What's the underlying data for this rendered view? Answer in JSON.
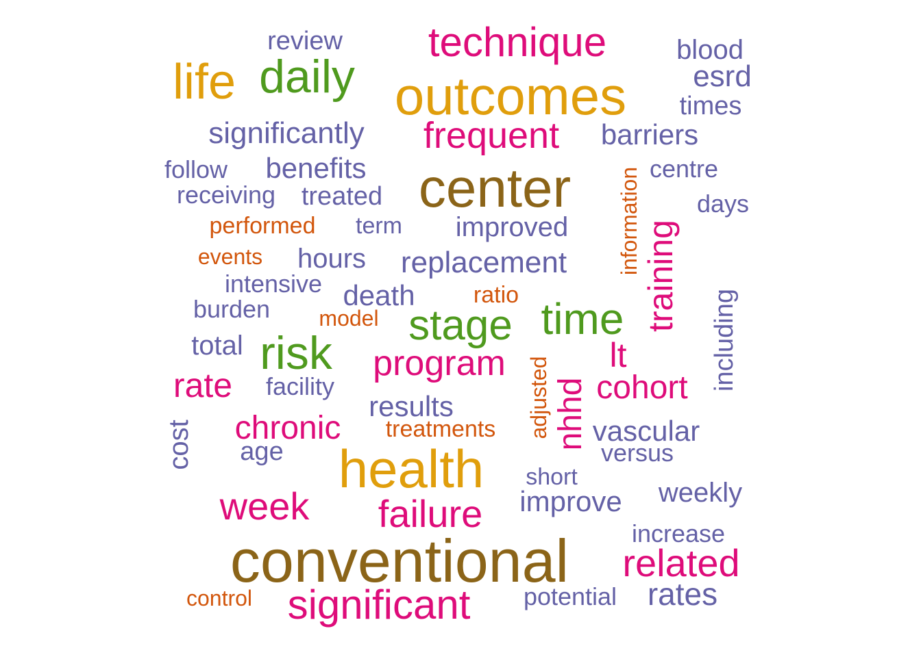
{
  "colors": {
    "brown": "#8B6418",
    "gold": "#E09E0C",
    "magenta": "#DE0C7A",
    "green": "#4F9A1E",
    "purple": "#6461A6",
    "orange": "#D2560C"
  },
  "words": [
    {
      "text": "conventional",
      "color": "brown"
    },
    {
      "text": "center",
      "color": "brown"
    },
    {
      "text": "outcomes",
      "color": "gold"
    },
    {
      "text": "health",
      "color": "gold"
    },
    {
      "text": "life",
      "color": "gold"
    },
    {
      "text": "daily",
      "color": "green"
    },
    {
      "text": "risk",
      "color": "green"
    },
    {
      "text": "stage",
      "color": "green"
    },
    {
      "text": "time",
      "color": "green"
    },
    {
      "text": "technique",
      "color": "magenta"
    },
    {
      "text": "frequent",
      "color": "magenta"
    },
    {
      "text": "training",
      "color": "magenta"
    },
    {
      "text": "program",
      "color": "magenta"
    },
    {
      "text": "lt",
      "color": "magenta"
    },
    {
      "text": "cohort",
      "color": "magenta"
    },
    {
      "text": "nhhd",
      "color": "magenta"
    },
    {
      "text": "rate",
      "color": "magenta"
    },
    {
      "text": "chronic",
      "color": "magenta"
    },
    {
      "text": "week",
      "color": "magenta"
    },
    {
      "text": "failure",
      "color": "magenta"
    },
    {
      "text": "related",
      "color": "magenta"
    },
    {
      "text": "significant",
      "color": "magenta"
    },
    {
      "text": "review",
      "color": "purple"
    },
    {
      "text": "blood",
      "color": "purple"
    },
    {
      "text": "esrd",
      "color": "purple"
    },
    {
      "text": "times",
      "color": "purple"
    },
    {
      "text": "significantly",
      "color": "purple"
    },
    {
      "text": "barriers",
      "color": "purple"
    },
    {
      "text": "follow",
      "color": "purple"
    },
    {
      "text": "benefits",
      "color": "purple"
    },
    {
      "text": "centre",
      "color": "purple"
    },
    {
      "text": "receiving",
      "color": "purple"
    },
    {
      "text": "treated",
      "color": "purple"
    },
    {
      "text": "days",
      "color": "purple"
    },
    {
      "text": "term",
      "color": "purple"
    },
    {
      "text": "improved",
      "color": "purple"
    },
    {
      "text": "hours",
      "color": "purple"
    },
    {
      "text": "replacement",
      "color": "purple"
    },
    {
      "text": "intensive",
      "color": "purple"
    },
    {
      "text": "death",
      "color": "purple"
    },
    {
      "text": "burden",
      "color": "purple"
    },
    {
      "text": "including",
      "color": "purple"
    },
    {
      "text": "total",
      "color": "purple"
    },
    {
      "text": "facility",
      "color": "purple"
    },
    {
      "text": "results",
      "color": "purple"
    },
    {
      "text": "cost",
      "color": "purple"
    },
    {
      "text": "vascular",
      "color": "purple"
    },
    {
      "text": "age",
      "color": "purple"
    },
    {
      "text": "versus",
      "color": "purple"
    },
    {
      "text": "short",
      "color": "purple"
    },
    {
      "text": "weekly",
      "color": "purple"
    },
    {
      "text": "improve",
      "color": "purple"
    },
    {
      "text": "increase",
      "color": "purple"
    },
    {
      "text": "potential",
      "color": "purple"
    },
    {
      "text": "rates",
      "color": "purple"
    },
    {
      "text": "information",
      "color": "orange"
    },
    {
      "text": "performed",
      "color": "orange"
    },
    {
      "text": "events",
      "color": "orange"
    },
    {
      "text": "ratio",
      "color": "orange"
    },
    {
      "text": "model",
      "color": "orange"
    },
    {
      "text": "adjusted",
      "color": "orange"
    },
    {
      "text": "treatments",
      "color": "orange"
    },
    {
      "text": "control",
      "color": "orange"
    }
  ]
}
